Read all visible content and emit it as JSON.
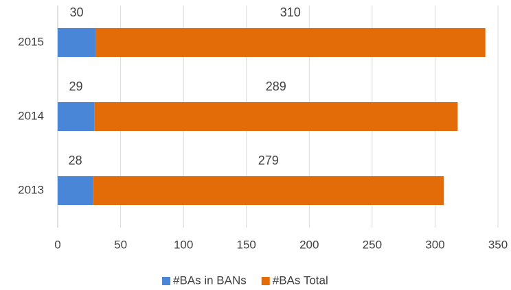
{
  "chart_data": {
    "type": "bar",
    "orientation": "horizontal",
    "stacked": true,
    "categories": [
      "2013",
      "2014",
      "2015"
    ],
    "series": [
      {
        "name": "#BAs in BANs",
        "color": "#4a86d8",
        "values": [
          28,
          29,
          30
        ]
      },
      {
        "name": "#BAs Total",
        "color": "#e36c09",
        "values": [
          279,
          289,
          310
        ]
      }
    ],
    "xlim": [
      0,
      350
    ],
    "xticks": [
      0,
      50,
      100,
      150,
      200,
      250,
      300,
      350
    ],
    "grid": true,
    "legend": "bottom"
  }
}
